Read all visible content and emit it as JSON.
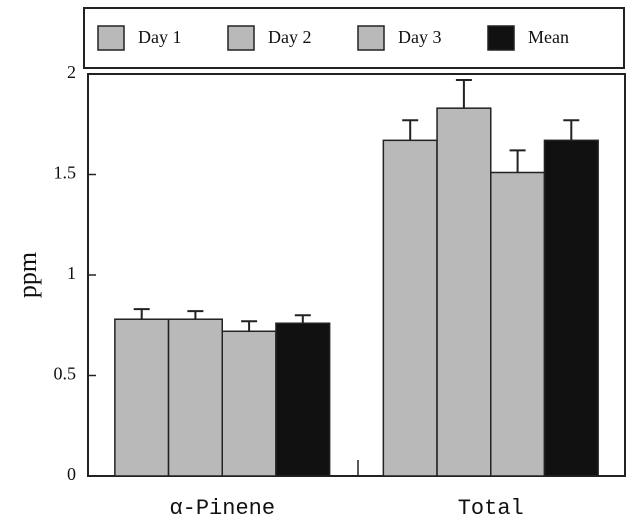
{
  "chart_data": {
    "type": "bar",
    "ylabel": "ppm",
    "categories": [
      "α-Pinene",
      "Total"
    ],
    "series": [
      {
        "name": "Day 1",
        "color": "#b9b9b9",
        "values": [
          0.78,
          1.67
        ],
        "errors": [
          0.05,
          0.1
        ]
      },
      {
        "name": "Day 2",
        "color": "#b9b9b9",
        "values": [
          0.78,
          1.83
        ],
        "errors": [
          0.04,
          0.14
        ]
      },
      {
        "name": "Day 3",
        "color": "#b9b9b9",
        "values": [
          0.72,
          1.51
        ],
        "errors": [
          0.05,
          0.11
        ]
      },
      {
        "name": "Mean",
        "color": "#111111",
        "values": [
          0.76,
          1.67
        ],
        "errors": [
          0.04,
          0.1
        ]
      }
    ],
    "ylim": [
      0,
      2
    ],
    "yticks": [
      0,
      0.5,
      1,
      1.5,
      2
    ],
    "grid": false,
    "legend": "top"
  }
}
